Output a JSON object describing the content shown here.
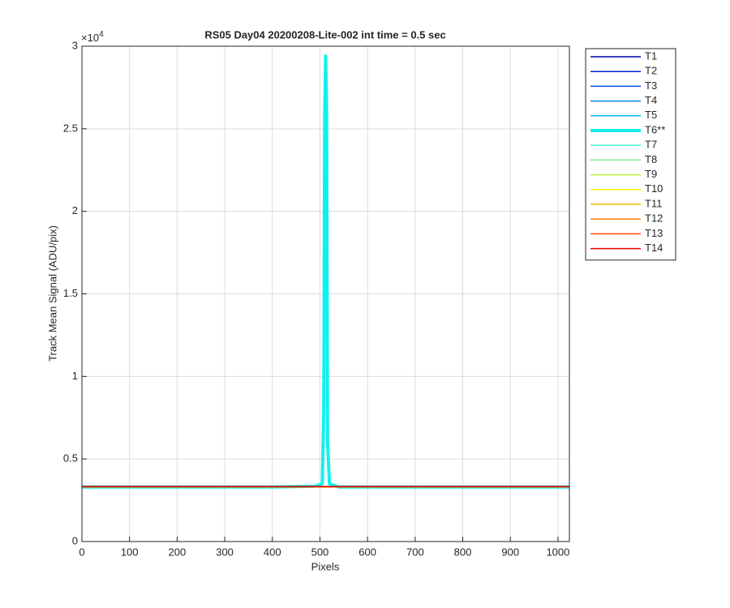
{
  "chart_data": {
    "type": "line",
    "title": "RS05 Day04 20200208-Lite-002 int time = 0.5 sec",
    "x_label": "Pixels",
    "y_label": "Track Mean Signal (ADU/pix)",
    "y_multiplier": {
      "base": "×10",
      "exponent": "4"
    },
    "xlim": [
      0,
      1024
    ],
    "xticks": [
      0,
      100,
      200,
      300,
      400,
      500,
      600,
      700,
      800,
      900,
      1000
    ],
    "ylim": [
      0,
      30000
    ],
    "yticks": [
      0,
      {
        "value": 5000,
        "label": "0.5"
      },
      {
        "value": 10000,
        "label": "1"
      },
      {
        "value": 15000,
        "label": "1.5"
      },
      {
        "value": 20000,
        "label": "2"
      },
      {
        "value": 25000,
        "label": "2.5"
      },
      {
        "value": 30000,
        "label": "3"
      }
    ],
    "grid": true,
    "legend": "outside-right",
    "x": [
      0,
      200,
      400,
      490,
      505,
      508,
      510,
      512,
      514,
      516,
      520,
      540,
      600,
      800,
      1024
    ],
    "series": [
      {
        "name": "T1",
        "color": "#0000a8",
        "line_width": 1.5,
        "values": [
          3300,
          3300,
          3300,
          3300,
          3300,
          3300,
          3300,
          3300,
          3300,
          3300,
          3300,
          3300,
          3300,
          3300,
          3300
        ]
      },
      {
        "name": "T2",
        "color": "#0020d0",
        "line_width": 1.5,
        "values": [
          3300,
          3300,
          3300,
          3300,
          3300,
          3300,
          3300,
          3300,
          3300,
          3300,
          3300,
          3300,
          3300,
          3300,
          3300
        ]
      },
      {
        "name": "T3",
        "color": "#0050e8",
        "line_width": 1.5,
        "values": [
          3300,
          3300,
          3300,
          3300,
          3300,
          3300,
          3300,
          3300,
          3300,
          3300,
          3300,
          3300,
          3300,
          3300,
          3300
        ]
      },
      {
        "name": "T4",
        "color": "#0088e8",
        "line_width": 1.5,
        "values": [
          3300,
          3300,
          3300,
          3300,
          3300,
          3300,
          3300,
          3300,
          3300,
          3300,
          3300,
          3300,
          3300,
          3300,
          3300
        ]
      },
      {
        "name": "T5",
        "color": "#00b8f0",
        "line_width": 1.5,
        "values": [
          3300,
          3300,
          3300,
          3300,
          3300,
          3300,
          3300,
          3300,
          3300,
          3300,
          3300,
          3300,
          3300,
          3300,
          3300
        ]
      },
      {
        "name": "T6**",
        "color": "#10f0f0",
        "line_width": 4,
        "values": [
          3300,
          3300,
          3300,
          3350,
          3500,
          8000,
          26000,
          29400,
          26000,
          6000,
          3500,
          3300,
          3300,
          3300,
          3300
        ]
      },
      {
        "name": "T7",
        "color": "#40f0c8",
        "line_width": 1.5,
        "values": [
          3300,
          3300,
          3300,
          3300,
          3300,
          3300,
          3300,
          3300,
          3300,
          3300,
          3300,
          3300,
          3300,
          3300,
          3300
        ]
      },
      {
        "name": "T8",
        "color": "#80f080",
        "line_width": 1.5,
        "values": [
          3300,
          3300,
          3300,
          3300,
          3300,
          3300,
          3300,
          3300,
          3300,
          3300,
          3300,
          3300,
          3300,
          3300,
          3300
        ]
      },
      {
        "name": "T9",
        "color": "#c0f040",
        "line_width": 1.5,
        "values": [
          3300,
          3300,
          3300,
          3300,
          3300,
          3300,
          3300,
          3300,
          3300,
          3300,
          3300,
          3300,
          3300,
          3300,
          3300
        ]
      },
      {
        "name": "T10",
        "color": "#f8f000",
        "line_width": 1.5,
        "values": [
          3300,
          3300,
          3300,
          3300,
          3300,
          3300,
          3300,
          3300,
          3300,
          3300,
          3300,
          3300,
          3300,
          3300,
          3300
        ]
      },
      {
        "name": "T11",
        "color": "#f0b800",
        "line_width": 1.5,
        "values": [
          3300,
          3300,
          3300,
          3300,
          3300,
          3300,
          3300,
          3300,
          3300,
          3300,
          3300,
          3300,
          3300,
          3300,
          3300
        ]
      },
      {
        "name": "T12",
        "color": "#ff8000",
        "line_width": 1.5,
        "values": [
          3300,
          3300,
          3300,
          3300,
          3300,
          3300,
          3300,
          3300,
          3300,
          3300,
          3300,
          3300,
          3300,
          3300,
          3300
        ]
      },
      {
        "name": "T13",
        "color": "#ff4800",
        "line_width": 1.5,
        "values": [
          3320,
          3320,
          3320,
          3320,
          3320,
          3320,
          3320,
          3320,
          3320,
          3320,
          3320,
          3320,
          3320,
          3320,
          3320
        ]
      },
      {
        "name": "T14",
        "color": "#e00000",
        "line_width": 1.5,
        "values": [
          3330,
          3330,
          3330,
          3330,
          3330,
          3330,
          3330,
          3330,
          3330,
          3330,
          3330,
          3330,
          3330,
          3330,
          3330
        ]
      }
    ]
  }
}
